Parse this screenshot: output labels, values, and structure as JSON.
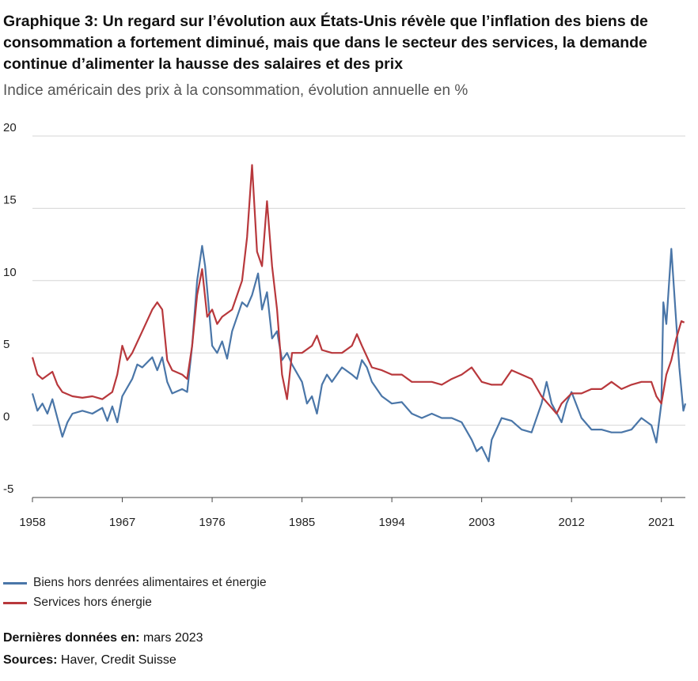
{
  "chart_data": {
    "type": "line",
    "title": "Graphique 3: Un regard sur l’évolution aux États-Unis révèle que l’inflation des biens de consommation a fortement diminué, mais que dans le secteur des services, la demande continue d’alimenter la hausse des salaires et des prix",
    "subtitle": "Indice américain des prix à la consommation, évolution annuelle en %",
    "xlim": [
      1958,
      2023.4
    ],
    "xticks": [
      1958,
      1967,
      1976,
      1985,
      1994,
      2003,
      2012,
      2021
    ],
    "ylim": [
      -5,
      20
    ],
    "yticks": [
      -5,
      0,
      5,
      10,
      15,
      20
    ],
    "grid": true,
    "series": [
      {
        "name": "Biens hors denrées alimentaires et énergie",
        "color": "#4a76a8",
        "x": [
          1958,
          1958.5,
          1959,
          1959.5,
          1960,
          1960.5,
          1961,
          1961.5,
          1962,
          1963,
          1964,
          1965,
          1965.5,
          1966,
          1966.5,
          1967,
          1968,
          1968.5,
          1969,
          1970,
          1970.5,
          1971,
          1971.5,
          1972,
          1973,
          1973.5,
          1974,
          1974.5,
          1975,
          1975.3,
          1976,
          1976.5,
          1977,
          1977.5,
          1978,
          1979,
          1979.5,
          1980,
          1980.6,
          1981,
          1981.5,
          1982,
          1982.5,
          1983,
          1983.5,
          1984,
          1985,
          1985.5,
          1986,
          1986.5,
          1987,
          1987.5,
          1988,
          1989,
          1990,
          1990.5,
          1991,
          1991.5,
          1992,
          1993,
          1994,
          1995,
          1996,
          1997,
          1998,
          1999,
          2000,
          2001,
          2002,
          2002.5,
          2003,
          2003.7,
          2004,
          2005,
          2006,
          2007,
          2008,
          2009,
          2009.5,
          2010,
          2011,
          2011.5,
          2012,
          2013,
          2014,
          2015,
          2016,
          2017,
          2018,
          2019,
          2020,
          2020.5,
          2021,
          2021.2,
          2021.5,
          2022,
          2022.4,
          2022.8,
          2023.2,
          2023.4
        ],
        "values": [
          2.2,
          1.0,
          1.5,
          0.8,
          1.8,
          0.5,
          -0.8,
          0.2,
          0.8,
          1.0,
          0.8,
          1.2,
          0.3,
          1.3,
          0.2,
          2.0,
          3.2,
          4.2,
          4.0,
          4.7,
          3.8,
          4.7,
          3.0,
          2.2,
          2.5,
          2.3,
          5.5,
          10,
          12.4,
          11.0,
          5.5,
          5.0,
          5.8,
          4.6,
          6.5,
          8.5,
          8.2,
          9.0,
          10.5,
          8.0,
          9.2,
          6.0,
          6.5,
          4.5,
          5.0,
          4.2,
          3.0,
          1.5,
          2.0,
          0.8,
          2.8,
          3.5,
          3.0,
          4.0,
          3.5,
          3.2,
          4.5,
          4.0,
          3.0,
          2.0,
          1.5,
          1.6,
          0.8,
          0.5,
          0.8,
          0.5,
          0.5,
          0.2,
          -1.0,
          -1.8,
          -1.5,
          -2.5,
          -1.0,
          0.5,
          0.3,
          -0.3,
          -0.5,
          1.5,
          3.0,
          1.5,
          0.2,
          1.5,
          2.3,
          0.5,
          -0.3,
          -0.3,
          -0.5,
          -0.5,
          -0.3,
          0.5,
          0.0,
          -1.2,
          1.5,
          8.5,
          7.0,
          12.2,
          8.0,
          4.0,
          1.0,
          1.5
        ]
      },
      {
        "name": "Services hors énergie",
        "color": "#b8383c",
        "x": [
          1958,
          1958.5,
          1959,
          1960,
          1960.5,
          1961,
          1962,
          1963,
          1964,
          1965,
          1966,
          1966.5,
          1967,
          1967.5,
          1968,
          1969,
          1970,
          1970.5,
          1971,
          1971.5,
          1972,
          1973,
          1973.5,
          1974,
          1974.5,
          1975,
          1975.5,
          1976,
          1976.5,
          1977,
          1978,
          1979,
          1979.5,
          1980,
          1980.5,
          1981,
          1981.5,
          1982,
          1982.5,
          1983,
          1983.5,
          1984,
          1985,
          1986,
          1986.5,
          1987,
          1988,
          1989,
          1990,
          1990.5,
          1991,
          1992,
          1993,
          1994,
          1995,
          1996,
          1997,
          1998,
          1999,
          2000,
          2001,
          2002,
          2003,
          2004,
          2005,
          2006,
          2007,
          2008,
          2009,
          2010,
          2010.5,
          2011,
          2012,
          2013,
          2014,
          2015,
          2016,
          2017,
          2018,
          2019,
          2020,
          2020.5,
          2021,
          2021.5,
          2022,
          2022.5,
          2023,
          2023.3
        ],
        "values": [
          4.7,
          3.5,
          3.2,
          3.7,
          2.8,
          2.3,
          2.0,
          1.9,
          2.0,
          1.8,
          2.3,
          3.5,
          5.5,
          4.5,
          5.0,
          6.5,
          8.0,
          8.5,
          8.0,
          4.5,
          3.8,
          3.5,
          3.2,
          5.5,
          9.0,
          10.8,
          7.5,
          8.0,
          7.0,
          7.5,
          8.0,
          10.0,
          13.0,
          18.0,
          12.0,
          11.0,
          15.5,
          11.0,
          8.0,
          3.5,
          1.8,
          5.0,
          5.0,
          5.5,
          6.2,
          5.2,
          5.0,
          5.0,
          5.5,
          6.3,
          5.5,
          4.0,
          3.8,
          3.5,
          3.5,
          3.0,
          3.0,
          3.0,
          2.8,
          3.2,
          3.5,
          4.0,
          3.0,
          2.8,
          2.8,
          3.8,
          3.5,
          3.2,
          2.0,
          1.2,
          0.8,
          1.5,
          2.2,
          2.2,
          2.5,
          2.5,
          3.0,
          2.5,
          2.8,
          3.0,
          3.0,
          2.0,
          1.5,
          3.5,
          4.5,
          6.0,
          7.2,
          7.1
        ]
      }
    ],
    "footnotes": [
      {
        "label": "Dernières données en:",
        "text": "mars 2023"
      },
      {
        "label": "Sources:",
        "text": "Haver, Credit Suisse"
      }
    ]
  }
}
